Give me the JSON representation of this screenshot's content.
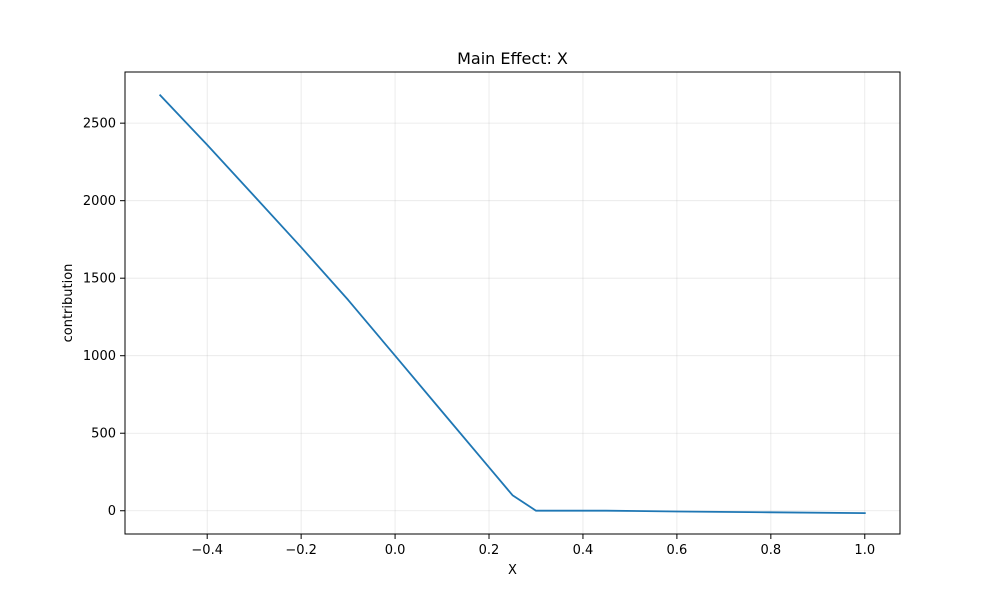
{
  "chart_data": {
    "type": "line",
    "title": "Main Effect: X",
    "xlabel": "X",
    "ylabel": "contribution",
    "xlim": [
      -0.575,
      1.075
    ],
    "ylim": [
      -150,
      2830
    ],
    "xticks": [
      -0.4,
      -0.2,
      0.0,
      0.2,
      0.4,
      0.6,
      0.8,
      1.0
    ],
    "xtick_labels": [
      "−0.4",
      "−0.2",
      "0.0",
      "0.2",
      "0.4",
      "0.6",
      "0.8",
      "1.0"
    ],
    "yticks": [
      0,
      500,
      1000,
      1500,
      2000,
      2500
    ],
    "ytick_labels": [
      "0",
      "500",
      "1000",
      "1500",
      "2000",
      "2500"
    ],
    "grid": true,
    "color": "#1f77b4",
    "series": [
      {
        "x": [
          -0.5,
          -0.4,
          -0.3,
          -0.2,
          -0.1,
          0.0,
          0.1,
          0.2,
          0.25,
          0.3,
          0.45,
          0.6,
          0.8,
          1.0
        ],
        "y": [
          2680,
          2360,
          2030,
          1700,
          1360,
          1000,
          640,
          280,
          100,
          0,
          0,
          -5,
          -10,
          -15
        ]
      }
    ]
  }
}
